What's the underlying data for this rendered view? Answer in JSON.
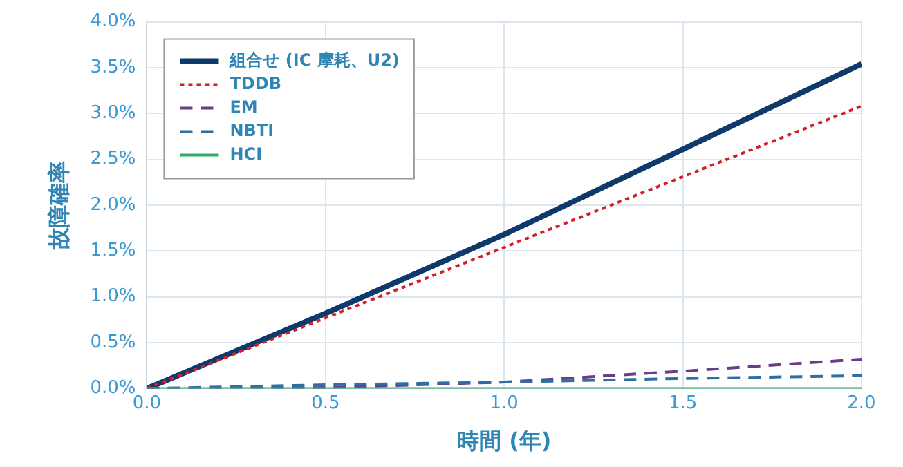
{
  "chart_data": {
    "type": "line",
    "xlabel": "時間 (年)",
    "ylabel": "故障確率",
    "x": [
      0,
      0.5,
      1,
      1.5,
      2
    ],
    "series": [
      {
        "name": "組合せ (IC 摩耗、U2)",
        "color": "#0d3a6b",
        "values": [
          0,
          0.82,
          1.68,
          2.61,
          3.54
        ],
        "line_style": "solid"
      },
      {
        "name": "TDDB",
        "color": "#d0212a",
        "values": [
          0,
          0.77,
          1.54,
          2.31,
          3.08
        ],
        "line_style": "dotted"
      },
      {
        "name": "EM",
        "color": "#6a3d8a",
        "values": [
          0,
          0.01,
          0.07,
          0.19,
          0.32
        ],
        "line_style": "dashed"
      },
      {
        "name": "NBTI",
        "color": "#2e6ea6",
        "values": [
          0,
          0.04,
          0.07,
          0.11,
          0.14
        ],
        "line_style": "dashed"
      },
      {
        "name": "HCI",
        "color": "#2eaa6a",
        "values": [
          0,
          0,
          0,
          0,
          0
        ],
        "line_style": "solid"
      }
    ],
    "xlim": [
      0,
      2
    ],
    "xticks": [
      {
        "value": 0,
        "label": "0.0"
      },
      {
        "value": 0.5,
        "label": "0.5"
      },
      {
        "value": 1,
        "label": "1.0"
      },
      {
        "value": 1.5,
        "label": "1.5"
      },
      {
        "value": 2,
        "label": "2.0"
      }
    ],
    "ylim": [
      0,
      4
    ],
    "yticks": [
      {
        "value": 0,
        "label": "0.0%"
      },
      {
        "value": 0.5,
        "label": "0.5%"
      },
      {
        "value": 1,
        "label": "1.0%"
      },
      {
        "value": 1.5,
        "label": "1.5%"
      },
      {
        "value": 2,
        "label": "2.0%"
      },
      {
        "value": 2.5,
        "label": "2.5%"
      },
      {
        "value": 3,
        "label": "3.0%"
      },
      {
        "value": 3.5,
        "label": "3.5%"
      },
      {
        "value": 4,
        "label": "4.0%"
      }
    ],
    "grid": true,
    "legend": "top left",
    "marker": "none"
  }
}
